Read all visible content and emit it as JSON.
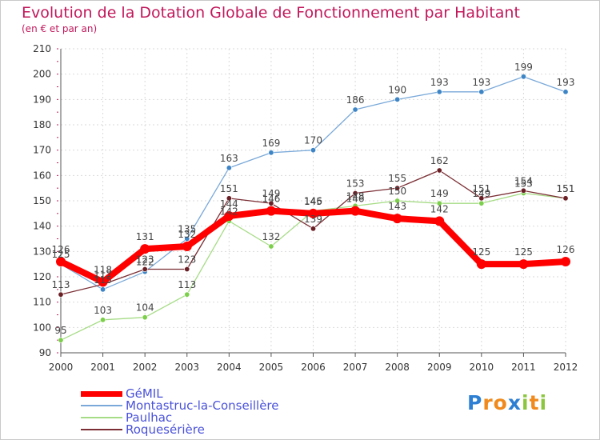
{
  "chart_data": {
    "type": "line",
    "title": "Evolution de la Dotation Globale de Fonctionnement par Habitant",
    "subtitle": "(en € et par an)",
    "xlabel": "",
    "ylabel": "",
    "x": [
      "2000",
      "2001",
      "2002",
      "2003",
      "2004",
      "2005",
      "2006",
      "2007",
      "2008",
      "2009",
      "2010",
      "2011",
      "2012"
    ],
    "ylim": [
      90,
      210
    ],
    "yticks": [
      "90",
      "100",
      "110",
      "120",
      "130",
      "140",
      "150",
      "160",
      "170",
      "180",
      "190",
      "200",
      "210"
    ],
    "grid": true,
    "legend_position": "bottom-left",
    "series": [
      {
        "name": "Montastruc-la-Conseillère",
        "color": "#7aa9d9",
        "marker_color": "#3d85c6",
        "values": [
          125,
          115,
          122,
          135,
          163,
          169,
          170,
          186,
          190,
          193,
          193,
          199,
          193
        ]
      },
      {
        "name": "Paulhac",
        "color": "#a6dc86",
        "marker_color": "#7ccf4b",
        "values": [
          95,
          103,
          104,
          113,
          142,
          132,
          146,
          148,
          150,
          149,
          149,
          153,
          151
        ]
      },
      {
        "name": "Roquesérière",
        "color": "#7b2f35",
        "marker_color": "#6a1f25",
        "values": [
          113,
          117,
          123,
          123,
          151,
          149,
          139,
          153,
          155,
          162,
          151,
          154,
          151
        ]
      },
      {
        "name": "GéMIL",
        "color": "#ff0000",
        "marker_color": "#ff0000",
        "values": [
          126,
          118,
          131,
          132,
          144,
          146,
          145,
          146,
          143,
          142,
          125,
          125,
          126
        ]
      }
    ],
    "data_labels": {
      "Montastruc-la-Conseillère": [
        "125",
        "115",
        "122",
        "135",
        "163",
        "169",
        "170",
        "186",
        "190",
        "193",
        "193",
        "199",
        "193"
      ],
      "Paulhac": [
        "95",
        "103",
        "104",
        "113",
        "142",
        "132",
        "146",
        "148",
        "150",
        "149",
        "149",
        "153",
        "151"
      ],
      "Roquesérière": [
        "113",
        "117",
        "123",
        "123",
        "151",
        "149",
        "139",
        "153",
        "155",
        "162",
        "151",
        "154",
        "151"
      ],
      "GéMIL": [
        "126",
        "118",
        "131",
        "132",
        "144",
        "146",
        "145",
        "146",
        "143",
        "142",
        "125",
        "125",
        "126"
      ]
    }
  },
  "legend": [
    {
      "label": "GéMIL",
      "color": "#ff0000"
    },
    {
      "label": "Montastruc-la-Conseillère",
      "color": "#7aa9d9"
    },
    {
      "label": "Paulhac",
      "color": "#a6dc86"
    },
    {
      "label": "Roquesérière",
      "color": "#7b2f35"
    }
  ],
  "logo": {
    "text": "Proxiti",
    "letters": [
      "P",
      "r",
      "o",
      "x",
      "i",
      "t",
      "i"
    ],
    "colors": [
      "#2d7fd3",
      "#f08a1c",
      "#f08a1c",
      "#2d7fd3",
      "#8cc63f",
      "#f08a1c",
      "#8cc63f"
    ]
  }
}
